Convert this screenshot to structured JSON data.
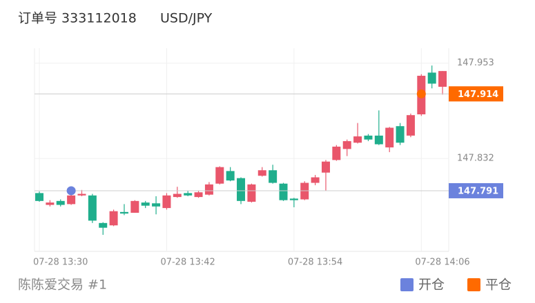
{
  "chart_data": {
    "type": "candlestick",
    "order_label": "订单号 333112018",
    "symbol": "USD/JPY",
    "footer": "陈陈爱交易 #1",
    "categories": [
      "07-28 13:30",
      null,
      null,
      null,
      null,
      null,
      null,
      null,
      null,
      null,
      null,
      null,
      "07-28 13:42",
      null,
      null,
      null,
      null,
      null,
      null,
      null,
      null,
      null,
      null,
      null,
      "07-28 13:54",
      null,
      null,
      null,
      null,
      null,
      null,
      null,
      null,
      null,
      null,
      null,
      "07-28 14:06",
      null,
      null
    ],
    "open": [
      147.788,
      147.773,
      147.778,
      147.774,
      147.785,
      147.785,
      147.75,
      147.747,
      147.764,
      147.763,
      147.776,
      147.775,
      147.769,
      147.783,
      147.788,
      147.783,
      147.786,
      147.8,
      147.816,
      147.807,
      147.777,
      147.81,
      147.817,
      147.8,
      147.781,
      147.78,
      147.801,
      147.814,
      147.83,
      147.844,
      147.852,
      147.861,
      147.861,
      147.846,
      147.873,
      147.861,
      147.888,
      147.941,
      147.923
    ],
    "high": [
      147.79,
      147.779,
      147.78,
      147.792,
      147.792,
      147.787,
      147.751,
      147.767,
      147.774,
      147.779,
      147.778,
      147.784,
      147.788,
      147.796,
      147.791,
      147.791,
      147.802,
      147.822,
      147.821,
      147.808,
      147.8,
      147.821,
      147.824,
      147.801,
      147.782,
      147.803,
      147.811,
      147.83,
      147.849,
      147.856,
      147.877,
      147.863,
      147.893,
      147.872,
      147.877,
      147.889,
      147.939,
      147.95,
      147.943
    ],
    "low": [
      147.777,
      147.771,
      147.771,
      147.773,
      147.784,
      147.75,
      147.735,
      147.746,
      147.76,
      147.763,
      147.769,
      147.761,
      147.767,
      147.782,
      147.784,
      147.782,
      147.785,
      147.799,
      147.803,
      147.774,
      147.776,
      147.809,
      147.8,
      147.778,
      147.77,
      147.779,
      147.798,
      147.791,
      147.829,
      147.835,
      147.851,
      147.854,
      147.849,
      147.84,
      147.849,
      147.859,
      147.886,
      147.921,
      147.913
    ],
    "close": [
      147.778,
      147.776,
      147.773,
      147.785,
      147.787,
      147.753,
      147.744,
      147.765,
      147.762,
      147.778,
      147.772,
      147.771,
      147.785,
      147.787,
      147.785,
      147.789,
      147.799,
      147.821,
      147.804,
      147.778,
      147.799,
      147.817,
      147.801,
      147.779,
      147.779,
      147.801,
      147.808,
      147.828,
      147.847,
      147.854,
      147.86,
      147.856,
      147.85,
      147.871,
      147.852,
      147.887,
      147.937,
      147.927,
      147.943
    ],
    "up_color": "#e9566b",
    "down_color": "#1fae8c",
    "ylim": [
      147.714,
      147.972
    ],
    "yticks": [
      147.953,
      147.832
    ],
    "grid": true,
    "markers": [
      {
        "name": "开仓",
        "color": "#6b82dd",
        "candle": 3,
        "value": 147.791
      },
      {
        "name": "平仓",
        "color": "#ff6a00",
        "candle": 36,
        "value": 147.914
      }
    ]
  }
}
